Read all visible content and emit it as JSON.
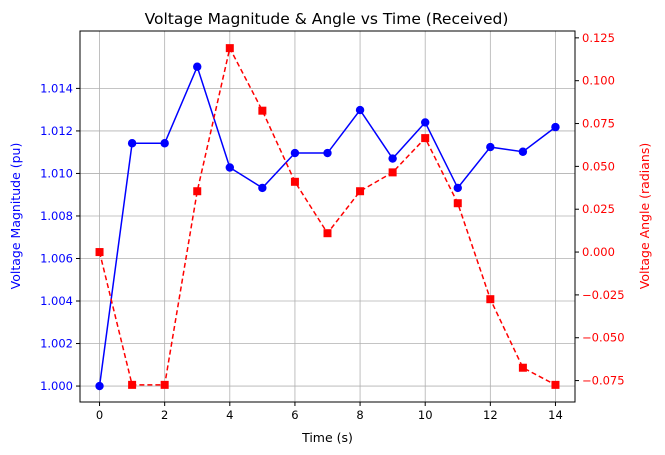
{
  "chart_data": {
    "type": "line",
    "title": "Voltage Magnitude & Angle vs Time (Received)",
    "xlabel": "Time (s)",
    "ylabel_left": "Voltage Magnitude (pu)",
    "ylabel_right": "Voltage Angle (radians)",
    "grid": true,
    "x": [
      0,
      1,
      2,
      3,
      4,
      5,
      6,
      7,
      8,
      9,
      10,
      11,
      12,
      13,
      14
    ],
    "xlim": [
      -0.6,
      14.6
    ],
    "ylim_left": [
      0.99925,
      1.0167
    ],
    "ylim_right": [
      -0.0875,
      0.129
    ],
    "x_ticks": [
      0,
      2,
      4,
      6,
      8,
      10,
      12,
      14
    ],
    "y_ticks_left": [
      1.0,
      1.002,
      1.004,
      1.006,
      1.008,
      1.01,
      1.012,
      1.014
    ],
    "y_ticks_right": [
      -0.075,
      -0.05,
      -0.025,
      0.0,
      0.025,
      0.05,
      0.075,
      0.1,
      0.125
    ],
    "x_tick_labels": [
      "0",
      "2",
      "4",
      "6",
      "8",
      "10",
      "12",
      "14"
    ],
    "y_tick_labels_left": [
      "1.000",
      "1.002",
      "1.004",
      "1.006",
      "1.008",
      "1.010",
      "1.012",
      "1.014"
    ],
    "y_tick_labels_right": [
      "−0.075",
      "−0.050",
      "−0.025",
      "0.000",
      "0.025",
      "0.050",
      "0.075",
      "0.100",
      "0.125"
    ],
    "series": [
      {
        "axis": "left",
        "color": "#0000ff",
        "line_style": "solid",
        "marker": "circle",
        "values": [
          1.0,
          1.01142,
          1.01142,
          1.01502,
          1.01028,
          1.00932,
          1.01096,
          1.01096,
          1.01298,
          1.0107,
          1.0124,
          1.00932,
          1.01124,
          1.01102,
          1.01218
        ]
      },
      {
        "axis": "right",
        "color": "#ff0000",
        "line_style": "dashed",
        "marker": "square",
        "values": [
          0.0,
          -0.0775,
          -0.0775,
          0.0355,
          0.119,
          0.0825,
          0.041,
          0.011,
          0.0355,
          0.0465,
          0.0665,
          0.0285,
          -0.0275,
          -0.0675,
          -0.0775
        ]
      }
    ]
  }
}
